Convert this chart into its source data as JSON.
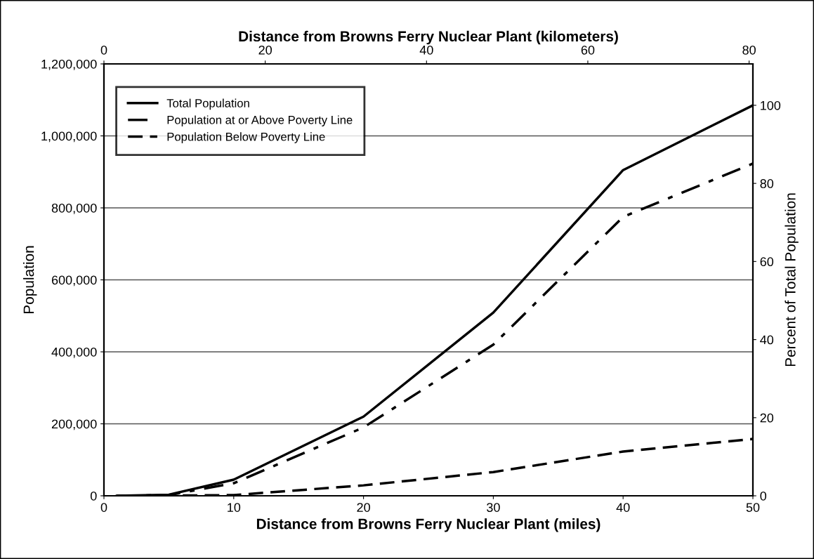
{
  "chart_data": {
    "type": "line",
    "xlabel": "Distance from Browns Ferry Nuclear Plant (miles)",
    "x2label": "Distance from Browns Ferry Nuclear Plant (kilometers)",
    "ylabel": "Population",
    "y2label": "Percent of Total Population",
    "x": [
      1,
      5,
      10,
      20,
      30,
      40,
      50
    ],
    "series": [
      {
        "name": "Total Population",
        "color": "#000000",
        "line_style": "solid",
        "values": [
          0,
          3000,
          45000,
          220000,
          509000,
          905000,
          1085000
        ]
      },
      {
        "name": "Population at or Above Poverty Line",
        "color": "#000000",
        "line_style": "dashdot",
        "values": [
          0,
          2000,
          35000,
          190000,
          420000,
          775000,
          923000
        ]
      },
      {
        "name": "Population Below Poverty Line",
        "color": "#000000",
        "line_style": "dashed",
        "values": [
          0,
          500,
          2000,
          29000,
          66000,
          123000,
          158000
        ]
      }
    ],
    "xlim": [
      0,
      50
    ],
    "xticks": [
      0,
      10,
      20,
      30,
      40,
      50
    ],
    "x2lim": [
      0,
      80.47
    ],
    "x2ticks": [
      0,
      20,
      40,
      60,
      80
    ],
    "ylim": [
      0,
      1200000
    ],
    "yticks": [
      {
        "value": 0,
        "label": "0"
      },
      {
        "value": 200000,
        "label": "200,000"
      },
      {
        "value": 400000,
        "label": "400,000"
      },
      {
        "value": 600000,
        "label": "600,000"
      },
      {
        "value": 800000,
        "label": "800,000"
      },
      {
        "value": 1000000,
        "label": "1,000,000"
      },
      {
        "value": 1200000,
        "label": "1,200,000"
      }
    ],
    "y2lim": [
      0,
      110.6
    ],
    "y2ticks": [
      0,
      20,
      40,
      60,
      80,
      100
    ],
    "grid": "y",
    "legend": "top left",
    "marker": "none"
  }
}
